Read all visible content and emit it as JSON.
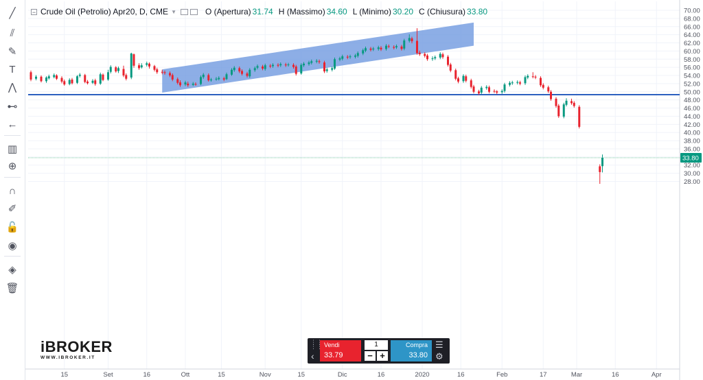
{
  "toolbar": {
    "tools": [
      {
        "name": "trend-line-icon",
        "glyph": "╱"
      },
      {
        "name": "parallel-channel-icon",
        "glyph": "⫽"
      },
      {
        "name": "brush-icon",
        "glyph": "✎"
      },
      {
        "name": "text-icon",
        "glyph": "T"
      },
      {
        "name": "pattern-icon",
        "glyph": "⋀"
      },
      {
        "name": "prediction-icon",
        "glyph": "⊷"
      },
      {
        "name": "back-arrow-icon",
        "glyph": "←"
      },
      {
        "name": "measure-icon",
        "glyph": "▥"
      },
      {
        "name": "zoom-in-icon",
        "glyph": "⊕"
      },
      {
        "name": "magnet-icon",
        "glyph": "∩"
      },
      {
        "name": "stay-drawing-icon",
        "glyph": "✐"
      },
      {
        "name": "lock-icon",
        "glyph": "🔓"
      },
      {
        "name": "eye-icon",
        "glyph": "◉"
      },
      {
        "name": "layers-icon",
        "glyph": "◈"
      },
      {
        "name": "trash-icon",
        "glyph": "🗑"
      }
    ]
  },
  "legend": {
    "symbol": "Crude Oil (Petrolio) Apr20, D, CME",
    "open_label": "O (Apertura)",
    "open_value": "31.74",
    "high_label": "H (Massimo)",
    "high_value": "34.60",
    "low_label": "L (Minimo)",
    "low_value": "30.20",
    "close_label": "C (Chiusura)",
    "close_value": "33.80"
  },
  "brand": {
    "name": "iBROKER",
    "url": "WWW.IBROKER.IT"
  },
  "trade_panel": {
    "sell_label": "Vendi",
    "sell_price": "33.79",
    "quantity": "1",
    "minus": "−",
    "plus": "+",
    "buy_label": "Compra",
    "buy_price": "33.80"
  },
  "colors": {
    "up": "#089981",
    "down": "#e8232e",
    "channel": "#6d97df",
    "hline": "#2b5fbf",
    "grid": "#f0f3fa",
    "price_line": "#7fcfa6"
  },
  "chart_data": {
    "type": "candlestick",
    "ylim": [
      26.5,
      71
    ],
    "y_ticks": [
      "70.00",
      "68.00",
      "66.00",
      "64.00",
      "62.00",
      "60.00",
      "58.00",
      "56.00",
      "54.00",
      "52.00",
      "50.00",
      "48.00",
      "46.00",
      "44.00",
      "42.00",
      "40.00",
      "38.00",
      "36.00",
      "34.00",
      "32.00",
      "30.00",
      "28.00"
    ],
    "x_ticks": [
      "15",
      "Set",
      "16",
      "Ott",
      "15",
      "Nov",
      "15",
      "Dic",
      "16",
      "2020",
      "16",
      "Feb",
      "17",
      "Mar",
      "16",
      "Apr"
    ],
    "x_tick_days": [
      14,
      31,
      46,
      61,
      75,
      92,
      106,
      122,
      137,
      153,
      168,
      184,
      200,
      213,
      228,
      244
    ],
    "last_price": "33.80",
    "last_price_value": 33.8,
    "horizontal_line": 49.3,
    "channel": {
      "d1": 52,
      "v1_bottom": 49.8,
      "v1_top": 55.5,
      "d2": 173,
      "v2_bottom": 61.3,
      "v2_top": 67.0
    },
    "candles": [
      [
        1,
        54.8,
        53.0,
        55.2,
        52.6
      ],
      [
        3,
        53.2,
        53.7,
        54.1,
        52.8
      ],
      [
        5,
        53.7,
        52.6,
        54.0,
        52.3
      ],
      [
        7,
        52.6,
        53.5,
        53.8,
        52.2
      ],
      [
        8,
        53.3,
        53.8,
        54.2,
        53.0
      ],
      [
        10,
        53.6,
        54.1,
        54.5,
        53.3
      ],
      [
        11,
        54.0,
        53.2,
        54.3,
        52.9
      ],
      [
        13,
        53.4,
        52.5,
        53.8,
        52.1
      ],
      [
        14,
        52.6,
        51.8,
        53.0,
        51.5
      ],
      [
        16,
        51.9,
        52.9,
        53.3,
        51.6
      ],
      [
        17,
        53.0,
        52.1,
        53.4,
        51.8
      ],
      [
        19,
        52.2,
        53.8,
        54.1,
        51.9
      ],
      [
        20,
        53.9,
        54.2,
        54.6,
        53.5
      ],
      [
        22,
        54.1,
        52.4,
        54.4,
        52.1
      ],
      [
        23,
        52.5,
        52.1,
        52.9,
        51.8
      ],
      [
        25,
        52.2,
        52.7,
        53.1,
        51.9
      ],
      [
        26,
        52.8,
        51.9,
        53.2,
        51.5
      ],
      [
        28,
        52.0,
        54.3,
        54.7,
        51.7
      ],
      [
        29,
        54.2,
        52.9,
        54.5,
        52.6
      ],
      [
        31,
        53.0,
        54.8,
        55.4,
        52.7
      ],
      [
        32,
        54.9,
        56.1,
        56.5,
        54.5
      ],
      [
        34,
        56.0,
        55.0,
        56.3,
        54.7
      ],
      [
        35,
        55.1,
        55.8,
        56.2,
        54.6
      ],
      [
        37,
        55.6,
        54.0,
        56.4,
        53.6
      ],
      [
        38,
        54.1,
        53.2,
        54.5,
        52.8
      ],
      [
        40,
        53.5,
        59.4,
        59.6,
        53.1
      ],
      [
        41,
        59.2,
        56.4,
        59.4,
        55.9
      ],
      [
        43,
        56.5,
        55.8,
        57.0,
        55.4
      ],
      [
        44,
        56.0,
        56.5,
        57.0,
        55.7
      ],
      [
        46,
        56.6,
        57.0,
        57.4,
        56.2
      ],
      [
        47,
        56.9,
        56.2,
        57.2,
        55.7
      ],
      [
        49,
        56.3,
        55.4,
        56.6,
        55.0
      ],
      [
        50,
        55.5,
        54.8,
        55.9,
        54.4
      ],
      [
        52,
        54.9,
        54.7,
        55.4,
        54.3
      ],
      [
        53,
        54.8,
        54.6,
        55.2,
        54.2
      ],
      [
        55,
        54.6,
        54.0,
        55.0,
        53.6
      ],
      [
        56,
        54.1,
        53.0,
        54.5,
        52.6
      ],
      [
        58,
        53.1,
        52.2,
        53.5,
        51.8
      ],
      [
        59,
        52.3,
        51.6,
        52.8,
        51.2
      ],
      [
        61,
        51.8,
        52.3,
        52.7,
        51.4
      ],
      [
        62,
        52.0,
        51.6,
        52.5,
        51.2
      ],
      [
        64,
        51.7,
        52.0,
        52.4,
        51.4
      ],
      [
        65,
        51.9,
        51.8,
        52.3,
        51.5
      ],
      [
        67,
        51.9,
        53.6,
        54.0,
        51.6
      ],
      [
        68,
        53.6,
        54.2,
        54.6,
        53.2
      ],
      [
        70,
        54.1,
        52.8,
        54.5,
        52.5
      ],
      [
        71,
        52.9,
        53.0,
        53.4,
        52.5
      ],
      [
        73,
        53.0,
        53.2,
        53.6,
        52.7
      ],
      [
        74,
        53.1,
        53.4,
        53.8,
        52.8
      ],
      [
        76,
        53.3,
        53.0,
        53.7,
        52.6
      ],
      [
        77,
        53.1,
        54.3,
        54.7,
        52.9
      ],
      [
        79,
        54.2,
        55.4,
        55.8,
        53.9
      ],
      [
        80,
        55.3,
        55.9,
        56.3,
        54.9
      ],
      [
        82,
        55.8,
        55.0,
        56.2,
        54.6
      ],
      [
        83,
        55.1,
        54.4,
        55.5,
        54.0
      ],
      [
        85,
        54.5,
        53.9,
        54.9,
        53.5
      ],
      [
        86,
        53.8,
        55.4,
        55.8,
        53.4
      ],
      [
        88,
        55.3,
        55.8,
        56.2,
        54.9
      ],
      [
        89,
        55.9,
        56.3,
        56.7,
        55.5
      ],
      [
        91,
        56.2,
        55.7,
        56.6,
        55.3
      ],
      [
        92,
        55.6,
        56.5,
        56.9,
        55.2
      ],
      [
        94,
        56.4,
        56.2,
        56.8,
        55.8
      ],
      [
        95,
        56.3,
        56.6,
        57.0,
        55.9
      ],
      [
        97,
        56.6,
        56.4,
        57.0,
        56.0
      ],
      [
        98,
        56.5,
        56.8,
        57.2,
        56.1
      ],
      [
        100,
        56.7,
        56.5,
        57.1,
        56.1
      ],
      [
        101,
        56.6,
        56.7,
        57.1,
        56.2
      ],
      [
        103,
        56.6,
        56.1,
        57.0,
        55.7
      ],
      [
        104,
        56.2,
        54.4,
        56.6,
        54.0
      ],
      [
        106,
        54.5,
        56.6,
        57.0,
        54.2
      ],
      [
        107,
        56.5,
        56.9,
        57.3,
        56.1
      ],
      [
        109,
        56.8,
        57.2,
        57.6,
        56.4
      ],
      [
        110,
        57.1,
        57.5,
        57.9,
        56.7
      ],
      [
        112,
        57.4,
        57.6,
        58.0,
        57.0
      ],
      [
        113,
        57.5,
        57.3,
        57.9,
        56.9
      ],
      [
        115,
        57.2,
        55.0,
        57.6,
        54.6
      ],
      [
        116,
        55.1,
        55.5,
        55.9,
        54.7
      ],
      [
        118,
        55.4,
        55.8,
        56.2,
        55.0
      ],
      [
        119,
        55.7,
        58.0,
        58.4,
        55.4
      ],
      [
        121,
        57.9,
        58.2,
        58.6,
        57.5
      ],
      [
        122,
        58.1,
        58.7,
        59.1,
        57.7
      ],
      [
        124,
        58.6,
        58.4,
        59.0,
        58.0
      ],
      [
        125,
        58.5,
        58.7,
        59.1,
        58.1
      ],
      [
        127,
        58.6,
        58.9,
        59.3,
        58.2
      ],
      [
        128,
        58.8,
        59.5,
        59.9,
        58.4
      ],
      [
        130,
        59.4,
        60.2,
        60.6,
        59.0
      ],
      [
        131,
        60.1,
        60.7,
        61.1,
        59.7
      ],
      [
        133,
        60.6,
        60.3,
        61.0,
        59.9
      ],
      [
        134,
        60.4,
        60.6,
        61.0,
        60.0
      ],
      [
        136,
        60.5,
        60.9,
        61.3,
        60.1
      ],
      [
        137,
        60.8,
        60.4,
        61.2,
        60.0
      ],
      [
        139,
        60.5,
        61.3,
        61.7,
        60.1
      ],
      [
        140,
        61.2,
        61.1,
        61.6,
        60.7
      ],
      [
        142,
        61.0,
        60.8,
        61.4,
        60.4
      ],
      [
        143,
        60.9,
        61.2,
        61.6,
        60.5
      ],
      [
        145,
        61.1,
        60.5,
        61.5,
        60.1
      ],
      [
        146,
        60.6,
        62.6,
        63.0,
        60.2
      ],
      [
        148,
        62.5,
        63.2,
        64.1,
        62.1
      ],
      [
        149,
        63.1,
        62.4,
        63.5,
        61.9
      ],
      [
        151,
        62.5,
        59.5,
        65.6,
        59.1
      ],
      [
        152,
        59.6,
        59.2,
        60.1,
        58.8
      ],
      [
        154,
        59.3,
        58.8,
        59.7,
        58.4
      ],
      [
        155,
        58.9,
        58.0,
        59.3,
        57.6
      ],
      [
        157,
        58.1,
        58.2,
        58.7,
        57.6
      ],
      [
        158,
        58.2,
        58.5,
        58.9,
        57.8
      ],
      [
        160,
        58.4,
        59.3,
        59.7,
        58.0
      ],
      [
        161,
        59.2,
        58.5,
        59.6,
        58.1
      ],
      [
        163,
        58.6,
        56.6,
        59.0,
        56.2
      ],
      [
        164,
        56.7,
        55.2,
        57.1,
        54.8
      ],
      [
        166,
        55.3,
        53.2,
        55.7,
        52.8
      ],
      [
        167,
        53.3,
        52.5,
        53.7,
        52.1
      ],
      [
        169,
        52.6,
        53.9,
        54.3,
        52.2
      ],
      [
        170,
        53.8,
        52.7,
        54.2,
        52.3
      ],
      [
        172,
        52.8,
        51.2,
        53.2,
        50.8
      ],
      [
        173,
        51.3,
        50.0,
        51.7,
        49.6
      ],
      [
        175,
        50.1,
        49.6,
        50.5,
        49.2
      ],
      [
        176,
        49.8,
        51.0,
        51.4,
        49.4
      ],
      [
        178,
        50.9,
        51.2,
        51.6,
        50.5
      ],
      [
        179,
        51.1,
        50.0,
        51.5,
        49.6
      ],
      [
        181,
        50.2,
        50.1,
        50.6,
        49.7
      ],
      [
        182,
        50.1,
        49.8,
        50.4,
        49.4
      ],
      [
        184,
        49.9,
        50.2,
        50.6,
        49.5
      ],
      [
        185,
        50.2,
        51.8,
        52.2,
        49.8
      ],
      [
        187,
        51.7,
        52.2,
        52.6,
        51.3
      ],
      [
        188,
        52.1,
        52.3,
        52.7,
        51.7
      ],
      [
        190,
        52.2,
        52.4,
        52.8,
        51.8
      ],
      [
        191,
        52.3,
        52.0,
        52.7,
        51.6
      ],
      [
        193,
        52.1,
        53.6,
        54.0,
        51.7
      ],
      [
        194,
        53.5,
        53.9,
        54.3,
        53.1
      ],
      [
        196,
        53.8,
        53.7,
        54.8,
        53.3
      ],
      [
        197,
        53.7,
        53.5,
        54.1,
        53.1
      ],
      [
        199,
        53.4,
        51.6,
        53.8,
        51.2
      ],
      [
        200,
        51.7,
        51.0,
        52.1,
        50.6
      ],
      [
        202,
        51.1,
        50.1,
        51.5,
        49.7
      ],
      [
        203,
        50.0,
        48.2,
        50.4,
        47.8
      ],
      [
        205,
        48.3,
        46.5,
        48.7,
        46.1
      ],
      [
        206,
        46.6,
        44.0,
        47.0,
        43.6
      ],
      [
        208,
        43.9,
        46.9,
        47.3,
        43.5
      ],
      [
        209,
        46.8,
        47.8,
        48.4,
        46.4
      ],
      [
        211,
        47.7,
        47.2,
        48.3,
        46.8
      ],
      [
        212,
        47.3,
        46.5,
        47.7,
        46.1
      ],
      [
        214,
        46.3,
        41.4,
        46.7,
        41.0
      ],
      [
        222,
        31.7,
        30.3,
        32.2,
        27.4
      ],
      [
        223,
        31.74,
        33.8,
        34.6,
        30.2
      ]
    ]
  }
}
